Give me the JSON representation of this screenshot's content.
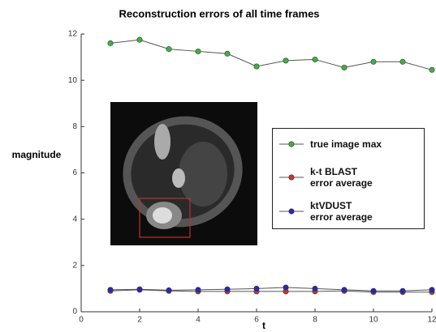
{
  "chart_data": {
    "type": "line",
    "title": "Reconstruction errors of all time frames",
    "x_label": "t",
    "y_label": "magnitude",
    "x": [
      1,
      2,
      3,
      4,
      5,
      6,
      7,
      8,
      9,
      10,
      11,
      12
    ],
    "series": [
      {
        "name": "true image max",
        "color": "#3cb43c",
        "values": [
          11.6,
          11.75,
          11.35,
          11.25,
          11.15,
          10.6,
          10.85,
          10.9,
          10.55,
          10.8,
          10.8,
          10.45
        ]
      },
      {
        "name": "k-t BLAST\nerror average",
        "color": "#c83232",
        "values": [
          0.9,
          0.95,
          0.9,
          0.88,
          0.88,
          0.88,
          0.88,
          0.88,
          0.9,
          0.85,
          0.85,
          0.85
        ]
      },
      {
        "name": "ktVDUST\nerror average",
        "color": "#2828b4",
        "values": [
          0.95,
          0.97,
          0.93,
          0.95,
          0.97,
          1.0,
          1.05,
          1.0,
          0.95,
          0.9,
          0.9,
          0.95
        ]
      }
    ],
    "xlim": [
      0,
      12
    ],
    "xticks": [
      0,
      2,
      4,
      6,
      8,
      10,
      12
    ],
    "ylim": [
      0,
      12
    ],
    "yticks": [
      0,
      2,
      4,
      6,
      8,
      10,
      12
    ]
  }
}
